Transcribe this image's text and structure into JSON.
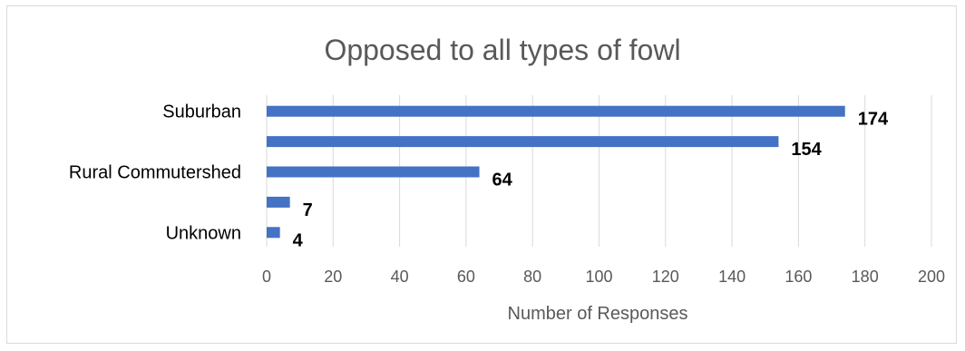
{
  "chart_data": {
    "type": "bar",
    "orientation": "horizontal",
    "title": "Opposed to all types of fowl",
    "xlabel": "Number of Responses",
    "ylabel": "",
    "categories": [
      "Suburban",
      "",
      "Rural Commutershed",
      "",
      "Unknown"
    ],
    "values": [
      174,
      154,
      64,
      7,
      4
    ],
    "data_labels": [
      "174",
      "154",
      "64",
      "7",
      "4"
    ],
    "xlim": [
      0,
      200
    ],
    "x_ticks": [
      "0",
      "20",
      "40",
      "60",
      "80",
      "100",
      "120",
      "140",
      "160",
      "180",
      "200"
    ],
    "grid": "vertical",
    "legend": "none",
    "bar_color": "#4472C4"
  }
}
